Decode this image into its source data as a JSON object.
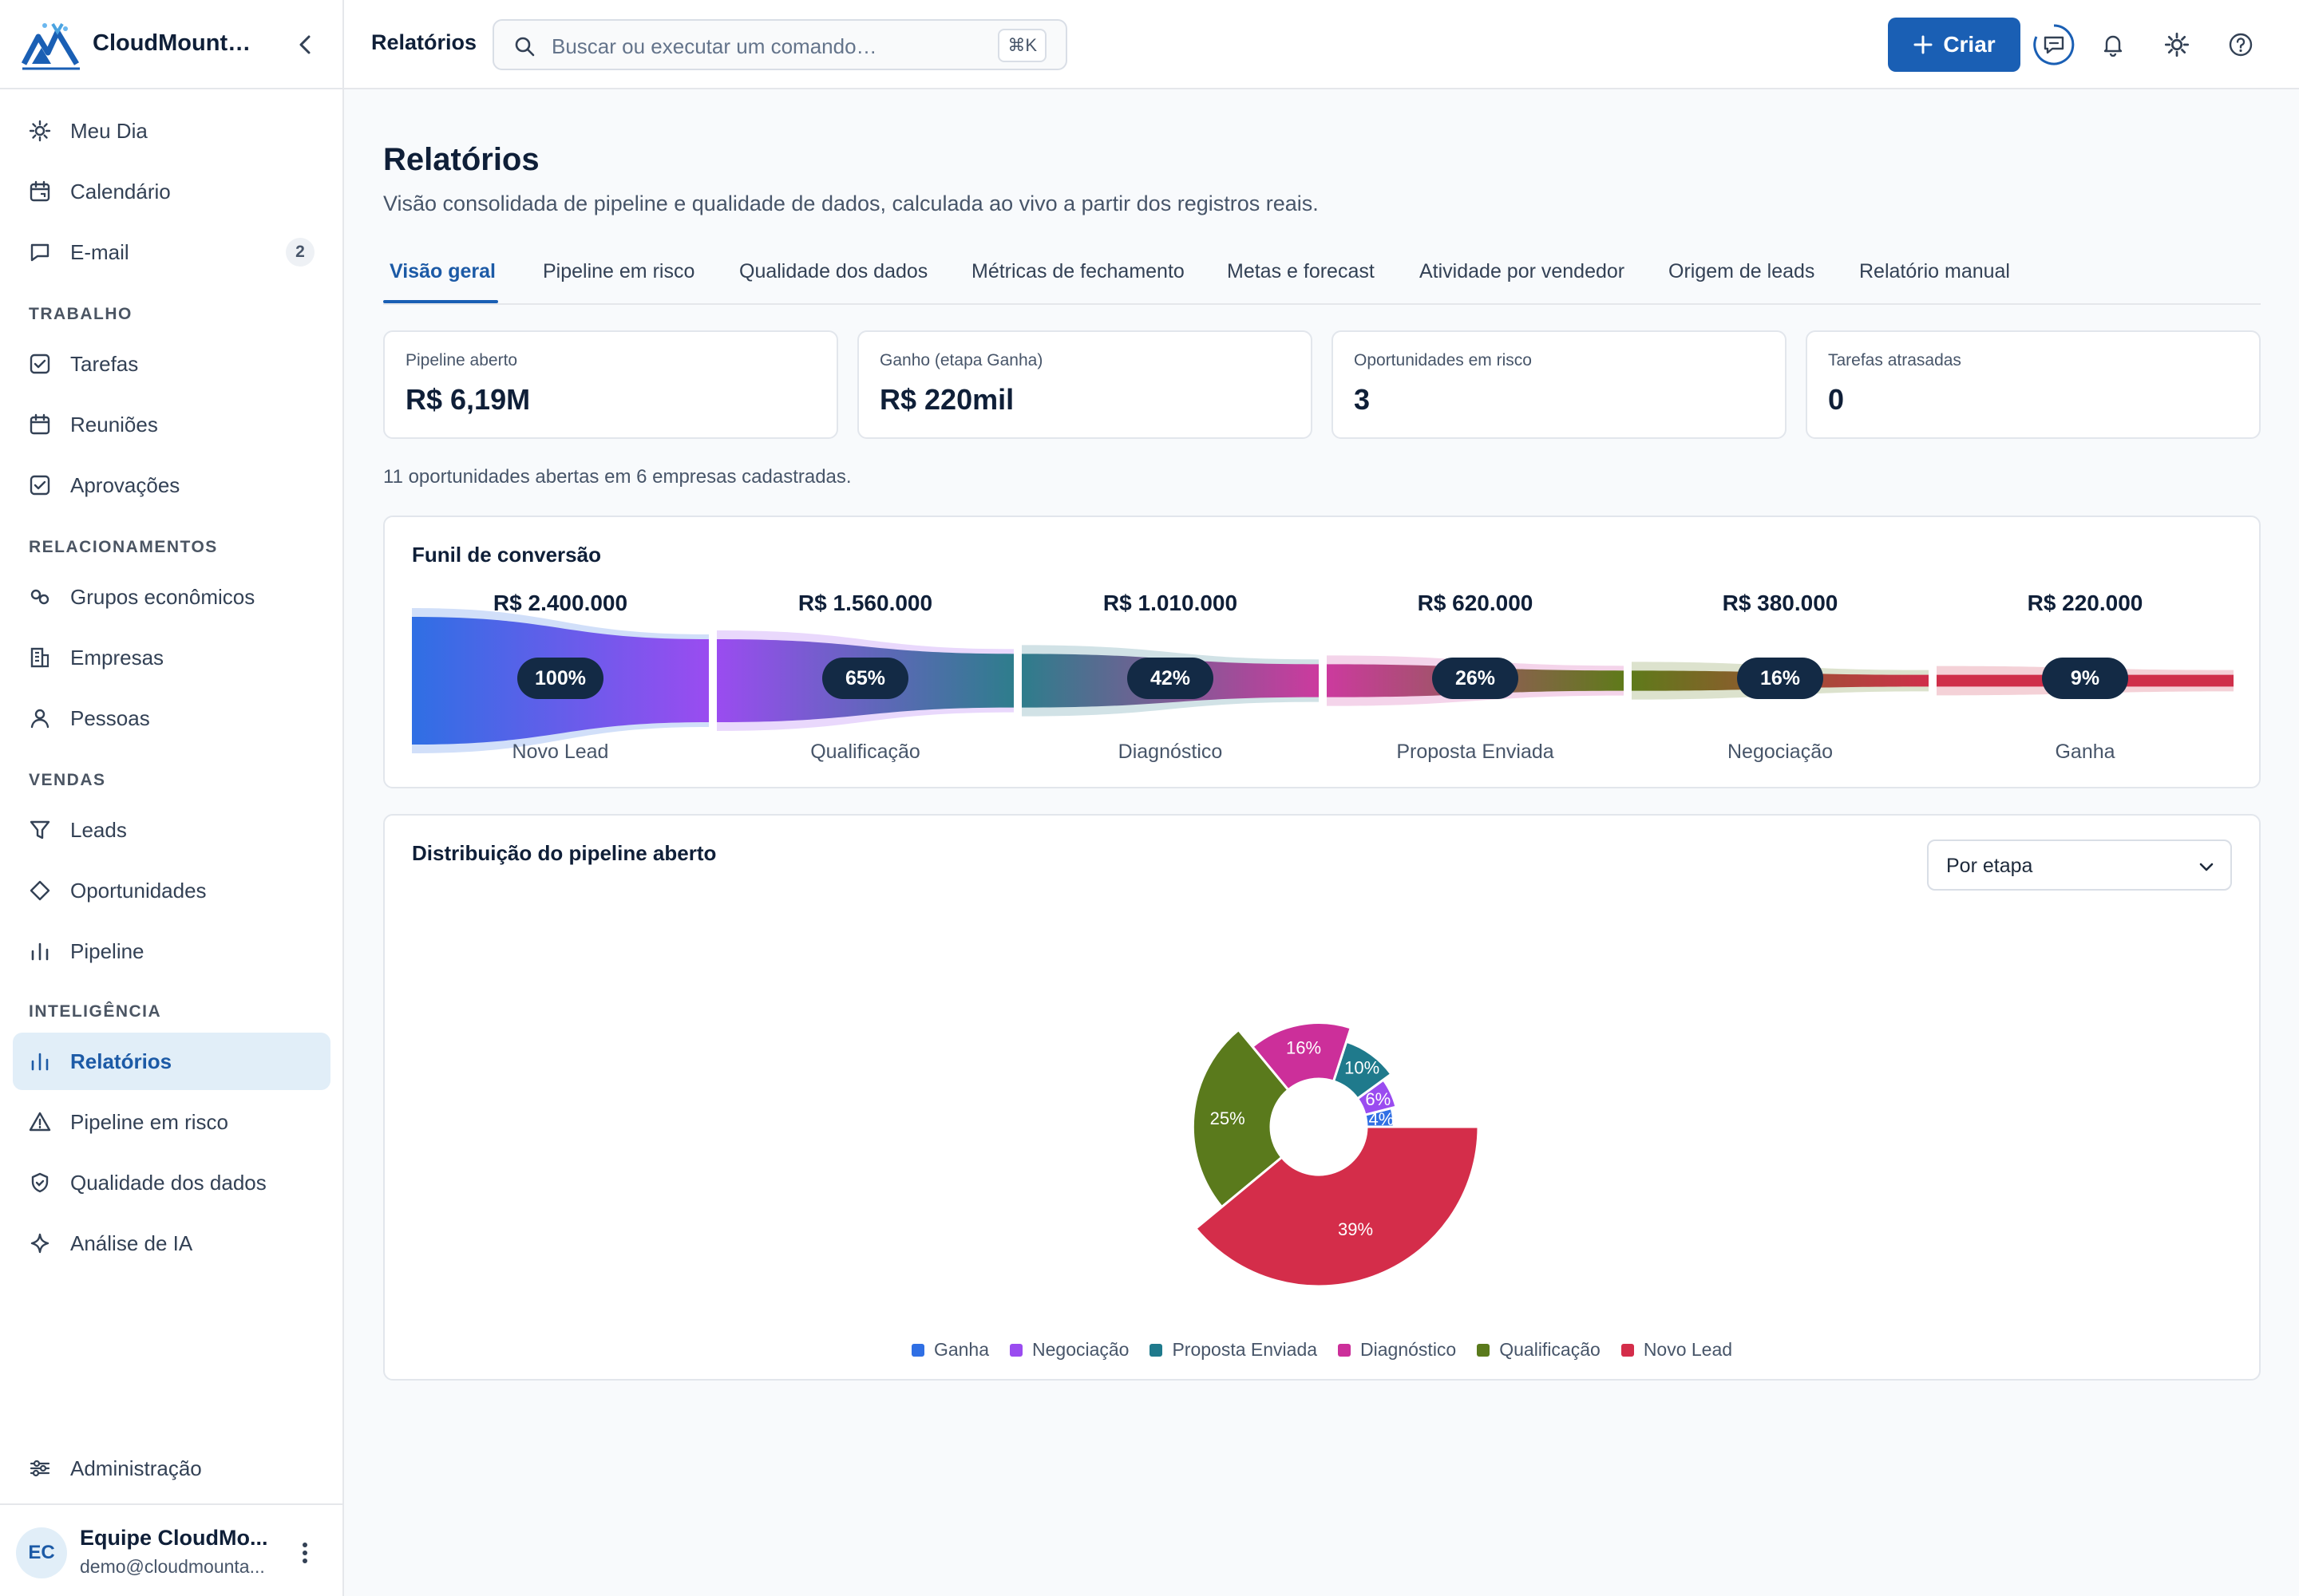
{
  "brand": {
    "name": "CloudMountai..."
  },
  "sidebar": {
    "top_items": [
      {
        "label": "Meu Dia",
        "icon": "sun-icon"
      },
      {
        "label": "Calendário",
        "icon": "calendar-icon"
      },
      {
        "label": "E-mail",
        "icon": "message-icon",
        "badge": "2"
      }
    ],
    "sections": [
      {
        "title": "TRABALHO",
        "items": [
          {
            "label": "Tarefas",
            "icon": "checkbox-icon"
          },
          {
            "label": "Reuniões",
            "icon": "calendar-icon"
          },
          {
            "label": "Aprovações",
            "icon": "checkbox-icon"
          }
        ]
      },
      {
        "title": "RELACIONAMENTOS",
        "items": [
          {
            "label": "Grupos econômicos",
            "icon": "link-circles-icon"
          },
          {
            "label": "Empresas",
            "icon": "building-icon"
          },
          {
            "label": "Pessoas",
            "icon": "user-icon"
          }
        ]
      },
      {
        "title": "VENDAS",
        "items": [
          {
            "label": "Leads",
            "icon": "filter-icon"
          },
          {
            "label": "Oportunidades",
            "icon": "diamond-icon"
          },
          {
            "label": "Pipeline",
            "icon": "bar-chart-icon"
          }
        ]
      },
      {
        "title": "INTELIGÊNCIA",
        "items": [
          {
            "label": "Relatórios",
            "icon": "bar-chart-icon",
            "active": true
          },
          {
            "label": "Pipeline em risco",
            "icon": "warning-icon"
          },
          {
            "label": "Qualidade dos dados",
            "icon": "shield-check-icon"
          },
          {
            "label": "Análise de IA",
            "icon": "sparkle-icon"
          }
        ]
      }
    ],
    "admin": {
      "label": "Administração",
      "icon": "sliders-icon"
    },
    "user": {
      "initials": "EC",
      "name": "Equipe CloudMo...",
      "email": "demo@cloudmounta..."
    }
  },
  "topbar": {
    "crumb": "Relatórios",
    "search_placeholder": "Buscar ou executar um comando…",
    "shortcut": "⌘K",
    "create_label": "Criar"
  },
  "page": {
    "title": "Relatórios",
    "subtitle": "Visão consolidada de pipeline e qualidade de dados, calculada ao vivo a partir dos registros reais."
  },
  "tabs": [
    {
      "label": "Visão geral",
      "active": true
    },
    {
      "label": "Pipeline em risco"
    },
    {
      "label": "Qualidade dos dados"
    },
    {
      "label": "Métricas de fechamento"
    },
    {
      "label": "Metas e forecast"
    },
    {
      "label": "Atividade por vendedor"
    },
    {
      "label": "Origem de leads"
    },
    {
      "label": "Relatório manual"
    }
  ],
  "kpis": [
    {
      "label": "Pipeline aberto",
      "value": "R$ 6,19M"
    },
    {
      "label": "Ganho (etapa Ganha)",
      "value": "R$ 220mil"
    },
    {
      "label": "Oportunidades em risco",
      "value": "3"
    },
    {
      "label": "Tarefas atrasadas",
      "value": "0"
    }
  ],
  "summary": "11 oportunidades abertas em 6 empresas cadastradas.",
  "funnel": {
    "title": "Funil de conversão",
    "stages": [
      {
        "name": "Novo Lead",
        "value_label": "R$ 2.400.000",
        "pct_label": "100%"
      },
      {
        "name": "Qualificação",
        "value_label": "R$ 1.560.000",
        "pct_label": "65%"
      },
      {
        "name": "Diagnóstico",
        "value_label": "R$ 1.010.000",
        "pct_label": "42%"
      },
      {
        "name": "Proposta Enviada",
        "value_label": "R$ 620.000",
        "pct_label": "26%"
      },
      {
        "name": "Negociação",
        "value_label": "R$ 380.000",
        "pct_label": "16%"
      },
      {
        "name": "Ganha",
        "value_label": "R$ 220.000",
        "pct_label": "9%"
      }
    ]
  },
  "distribution": {
    "title": "Distribuição do pipeline aberto",
    "select_value": "Por etapa"
  },
  "chart_data": [
    {
      "type": "bar",
      "categories": [
        "Novo Lead",
        "Qualificação",
        "Diagnóstico",
        "Proposta Enviada",
        "Negociação",
        "Ganha"
      ],
      "values": [
        2400000,
        1560000,
        1010000,
        620000,
        380000,
        220000
      ],
      "percent_of_first": [
        100,
        65,
        42,
        26,
        16,
        9
      ],
      "title": "Funil de conversão",
      "colors": [
        "#2f6fe4",
        "#9a4cf0",
        "#2e7d8c",
        "#cc3a9e",
        "#5f7a1a",
        "#cf2f4a"
      ]
    },
    {
      "type": "pie",
      "title": "Distribuição do pipeline aberto",
      "slices": [
        {
          "label": "Ganha",
          "value": 4,
          "color": "#2f6fe4"
        },
        {
          "label": "Negociação",
          "value": 6,
          "color": "#9a4cf0"
        },
        {
          "label": "Proposta Enviada",
          "value": 10,
          "color": "#1f7a8c"
        },
        {
          "label": "Diagnóstico",
          "value": 16,
          "color": "#cc2f9a"
        },
        {
          "label": "Qualificação",
          "value": 25,
          "color": "#5a7a1c"
        },
        {
          "label": "Novo Lead",
          "value": 39,
          "color": "#d42d4a"
        }
      ],
      "legend": "bottom"
    }
  ]
}
